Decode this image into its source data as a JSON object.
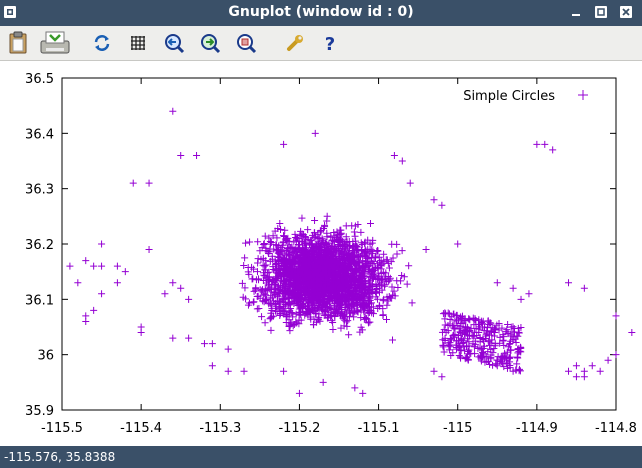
{
  "window": {
    "title": "Gnuplot (window id : 0)"
  },
  "toolbar": {
    "buttons": [
      {
        "name": "copy-to-clipboard",
        "icon": "clipboard-icon"
      },
      {
        "name": "print",
        "icon": "printer-icon"
      },
      {
        "name": "replot",
        "icon": "refresh-icon"
      },
      {
        "name": "toggle-grid",
        "icon": "grid-icon"
      },
      {
        "name": "previous-zoom",
        "icon": "zoom-back-icon"
      },
      {
        "name": "next-zoom",
        "icon": "zoom-forward-icon"
      },
      {
        "name": "autoscale",
        "icon": "zoom-autoscale-icon"
      },
      {
        "name": "settings",
        "icon": "wrench-icon"
      },
      {
        "name": "help",
        "icon": "question-icon"
      }
    ]
  },
  "status": {
    "coords": "-115.576,  35.8388"
  },
  "colors": {
    "titlebar": "#3a5068",
    "series": "#9400d3"
  },
  "chart_data": {
    "type": "scatter",
    "title": "",
    "xlabel": "",
    "ylabel": "",
    "xlim": [
      -115.5,
      -114.8
    ],
    "ylim": [
      35.9,
      36.5
    ],
    "xticks": [
      -115.5,
      -115.4,
      -115.3,
      -115.2,
      -115.1,
      -115.0,
      -114.9,
      -114.8
    ],
    "xtick_labels": [
      "-115.5",
      "-115.4",
      "-115.3",
      "-115.2",
      "-115.1",
      "-115",
      "-114.9",
      "-114.8"
    ],
    "yticks": [
      35.9,
      36.0,
      36.1,
      36.2,
      36.3,
      36.4,
      36.5
    ],
    "ytick_labels": [
      "35.9",
      "36",
      "36.1",
      "36.2",
      "36.3",
      "36.4",
      "36.5"
    ],
    "grid": false,
    "legend_position": "top-right",
    "series": [
      {
        "name": "Simple Circles",
        "marker": "plus",
        "color": "#9400d3",
        "points": [
          [
            -115.36,
            36.44
          ],
          [
            -115.18,
            36.4
          ],
          [
            -115.35,
            36.36
          ],
          [
            -115.33,
            36.36
          ],
          [
            -115.22,
            36.38
          ],
          [
            -115.07,
            36.35
          ],
          [
            -115.08,
            36.36
          ],
          [
            -114.9,
            36.38
          ],
          [
            -114.89,
            36.38
          ],
          [
            -114.88,
            36.37
          ],
          [
            -115.41,
            36.31
          ],
          [
            -115.39,
            36.31
          ],
          [
            -115.06,
            36.31
          ],
          [
            -115.02,
            36.27
          ],
          [
            -115.03,
            36.28
          ],
          [
            -115.45,
            36.2
          ],
          [
            -115.47,
            36.17
          ],
          [
            -115.49,
            36.16
          ],
          [
            -115.46,
            36.16
          ],
          [
            -115.45,
            36.16
          ],
          [
            -115.43,
            36.16
          ],
          [
            -115.42,
            36.15
          ],
          [
            -115.39,
            36.19
          ],
          [
            -115.0,
            36.2
          ],
          [
            -115.04,
            36.19
          ],
          [
            -115.45,
            36.11
          ],
          [
            -115.48,
            36.13
          ],
          [
            -115.43,
            36.13
          ],
          [
            -115.37,
            36.11
          ],
          [
            -115.36,
            36.13
          ],
          [
            -115.47,
            36.06
          ],
          [
            -115.46,
            36.08
          ],
          [
            -115.47,
            36.07
          ],
          [
            -115.4,
            36.05
          ],
          [
            -115.4,
            36.04
          ],
          [
            -115.36,
            36.03
          ],
          [
            -115.34,
            36.03
          ],
          [
            -115.34,
            36.1
          ],
          [
            -115.35,
            36.12
          ],
          [
            -114.95,
            36.13
          ],
          [
            -114.93,
            36.12
          ],
          [
            -114.91,
            36.11
          ],
          [
            -114.92,
            36.1
          ],
          [
            -114.86,
            36.13
          ],
          [
            -114.84,
            36.12
          ],
          [
            -114.8,
            36.07
          ],
          [
            -114.78,
            36.04
          ],
          [
            -114.8,
            36.0
          ],
          [
            -114.86,
            35.97
          ],
          [
            -114.85,
            35.98
          ],
          [
            -114.84,
            35.97
          ],
          [
            -114.83,
            35.98
          ],
          [
            -114.82,
            35.97
          ],
          [
            -114.84,
            35.96
          ],
          [
            -114.85,
            35.96
          ],
          [
            -114.81,
            35.99
          ],
          [
            -114.93,
            35.97
          ],
          [
            -114.95,
            35.98
          ],
          [
            -114.97,
            36.01
          ],
          [
            -115.02,
            35.96
          ],
          [
            -115.03,
            35.97
          ],
          [
            -115.2,
            35.93
          ],
          [
            -115.17,
            35.95
          ],
          [
            -115.13,
            35.94
          ],
          [
            -115.12,
            35.93
          ],
          [
            -115.22,
            35.97
          ],
          [
            -115.27,
            35.97
          ],
          [
            -115.29,
            35.97
          ],
          [
            -115.31,
            35.98
          ],
          [
            -115.29,
            36.01
          ],
          [
            -115.31,
            36.02
          ],
          [
            -115.32,
            36.02
          ]
        ]
      }
    ]
  }
}
